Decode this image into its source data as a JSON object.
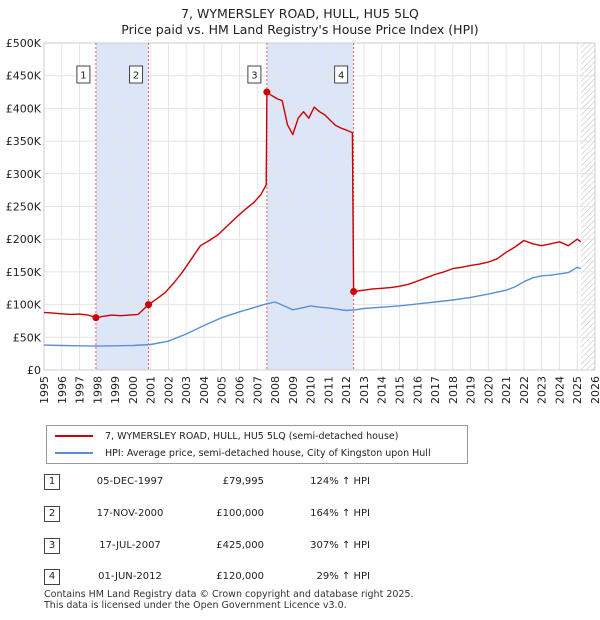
{
  "title": "7, WYMERSLEY ROAD, HULL, HU5 5LQ",
  "subtitle": "Price paid vs. HM Land Registry's House Price Index (HPI)",
  "colors": {
    "property": "#cc0000",
    "hpi": "#5b8fd4",
    "band": "#dde6f8",
    "marker_line": "#e06060"
  },
  "chart_data": {
    "type": "line",
    "title": "7, WYMERSLEY ROAD, HULL, HU5 5LQ",
    "subtitle": "Price paid vs. HM Land Registry's House Price Index (HPI)",
    "xlim": [
      1995,
      2026
    ],
    "ylim": [
      0,
      500000
    ],
    "x_ticks": [
      1995,
      1996,
      1997,
      1998,
      1999,
      2000,
      2001,
      2002,
      2003,
      2004,
      2005,
      2006,
      2007,
      2008,
      2009,
      2010,
      2011,
      2012,
      2013,
      2014,
      2015,
      2016,
      2017,
      2018,
      2019,
      2020,
      2021,
      2022,
      2023,
      2024,
      2025,
      2026
    ],
    "y_ticks": [
      {
        "value": 0,
        "label": "£0"
      },
      {
        "value": 50000,
        "label": "£50K"
      },
      {
        "value": 100000,
        "label": "£100K"
      },
      {
        "value": 150000,
        "label": "£150K"
      },
      {
        "value": 200000,
        "label": "£200K"
      },
      {
        "value": 250000,
        "label": "£250K"
      },
      {
        "value": 300000,
        "label": "£300K"
      },
      {
        "value": 350000,
        "label": "£350K"
      },
      {
        "value": 400000,
        "label": "£400K"
      },
      {
        "value": 450000,
        "label": "£450K"
      },
      {
        "value": 500000,
        "label": "£500K"
      }
    ],
    "shaded_periods": [
      [
        1997.92,
        2000.88
      ],
      [
        2007.54,
        2012.42
      ]
    ],
    "future_hatch_from": 2025.2,
    "series": [
      {
        "name": "7, WYMERSLEY ROAD, HULL, HU5 5LQ (semi-detached house)",
        "x": [
          1995,
          1995.5,
          1996,
          1996.5,
          1997,
          1997.5,
          1997.92,
          1998.3,
          1998.8,
          1999.3,
          1999.8,
          2000.3,
          2000.88,
          2001.3,
          2001.8,
          2002.3,
          2002.8,
          2003.3,
          2003.8,
          2004.3,
          2004.8,
          2005.3,
          2005.8,
          2006.3,
          2006.8,
          2007.2,
          2007.5,
          2007.54,
          2007.8,
          2008.1,
          2008.4,
          2008.7,
          2009.0,
          2009.3,
          2009.6,
          2009.9,
          2010.2,
          2010.5,
          2010.8,
          2011.1,
          2011.4,
          2011.7,
          2012.0,
          2012.35,
          2012.42,
          2013,
          2013.5,
          2014,
          2014.5,
          2015,
          2015.5,
          2016,
          2016.5,
          2017,
          2017.5,
          2018,
          2018.5,
          2019,
          2019.5,
          2020,
          2020.5,
          2021,
          2021.5,
          2022,
          2022.5,
          2023,
          2023.5,
          2024,
          2024.5,
          2025,
          2025.2
        ],
        "y": [
          88000,
          87000,
          86000,
          85000,
          85500,
          84000,
          79995,
          82000,
          84000,
          83000,
          84000,
          85000,
          100000,
          108000,
          118000,
          133000,
          150000,
          170000,
          190000,
          198000,
          207000,
          220000,
          233000,
          245000,
          256000,
          268000,
          283000,
          425000,
          420000,
          415000,
          412000,
          375000,
          360000,
          385000,
          395000,
          385000,
          402000,
          395000,
          390000,
          382000,
          374000,
          370000,
          367000,
          363000,
          120000,
          122000,
          124000,
          125000,
          126000,
          128000,
          131000,
          136000,
          141000,
          146000,
          150000,
          155000,
          157000,
          160000,
          162000,
          165000,
          170000,
          180000,
          188000,
          198000,
          193000,
          190000,
          193000,
          196000,
          190000,
          200000,
          196000
        ]
      },
      {
        "name": "HPI: Average price, semi-detached house, City of Kingston upon Hull",
        "x": [
          1995,
          1996,
          1997,
          1998,
          1999,
          2000,
          2001,
          2002,
          2003,
          2004,
          2005,
          2006,
          2007,
          2007.5,
          2008,
          2008.5,
          2009,
          2009.5,
          2010,
          2010.5,
          2011,
          2011.5,
          2012,
          2012.5,
          2013,
          2014,
          2015,
          2016,
          2017,
          2018,
          2019,
          2020,
          2021,
          2021.5,
          2022,
          2022.5,
          2023,
          2023.5,
          2024,
          2024.5,
          2025,
          2025.2
        ],
        "y": [
          38000,
          37500,
          37000,
          36500,
          37000,
          37500,
          39000,
          44000,
          55000,
          68000,
          80000,
          89000,
          97000,
          101000,
          104000,
          98000,
          92000,
          95000,
          98000,
          96000,
          95000,
          93000,
          91000,
          92000,
          94000,
          96000,
          98000,
          101000,
          104000,
          107000,
          111000,
          116000,
          122000,
          127000,
          135000,
          141000,
          144000,
          145000,
          147000,
          149000,
          157000,
          155000
        ]
      }
    ],
    "transactions": [
      {
        "id": "1",
        "x": 1997.92,
        "y": 79995
      },
      {
        "id": "2",
        "x": 2000.88,
        "y": 100000
      },
      {
        "id": "3",
        "x": 2007.54,
        "y": 425000
      },
      {
        "id": "4",
        "x": 2012.42,
        "y": 120000
      }
    ]
  },
  "legend": {
    "property": "7, WYMERSLEY ROAD, HULL, HU5 5LQ (semi-detached house)",
    "hpi": "HPI: Average price, semi-detached house, City of Kingston upon Hull"
  },
  "transactions": [
    {
      "num": "1",
      "date": "05-DEC-1997",
      "price": "£79,995",
      "hpi": "124% ↑ HPI"
    },
    {
      "num": "2",
      "date": "17-NOV-2000",
      "price": "£100,000",
      "hpi": "164% ↑ HPI"
    },
    {
      "num": "3",
      "date": "17-JUL-2007",
      "price": "£425,000",
      "hpi": "307% ↑ HPI"
    },
    {
      "num": "4",
      "date": "01-JUN-2012",
      "price": "£120,000",
      "hpi": "29% ↑ HPI"
    }
  ],
  "footer": {
    "line1": "Contains HM Land Registry data © Crown copyright and database right 2025.",
    "line2": "This data is licensed under the Open Government Licence v3.0."
  }
}
